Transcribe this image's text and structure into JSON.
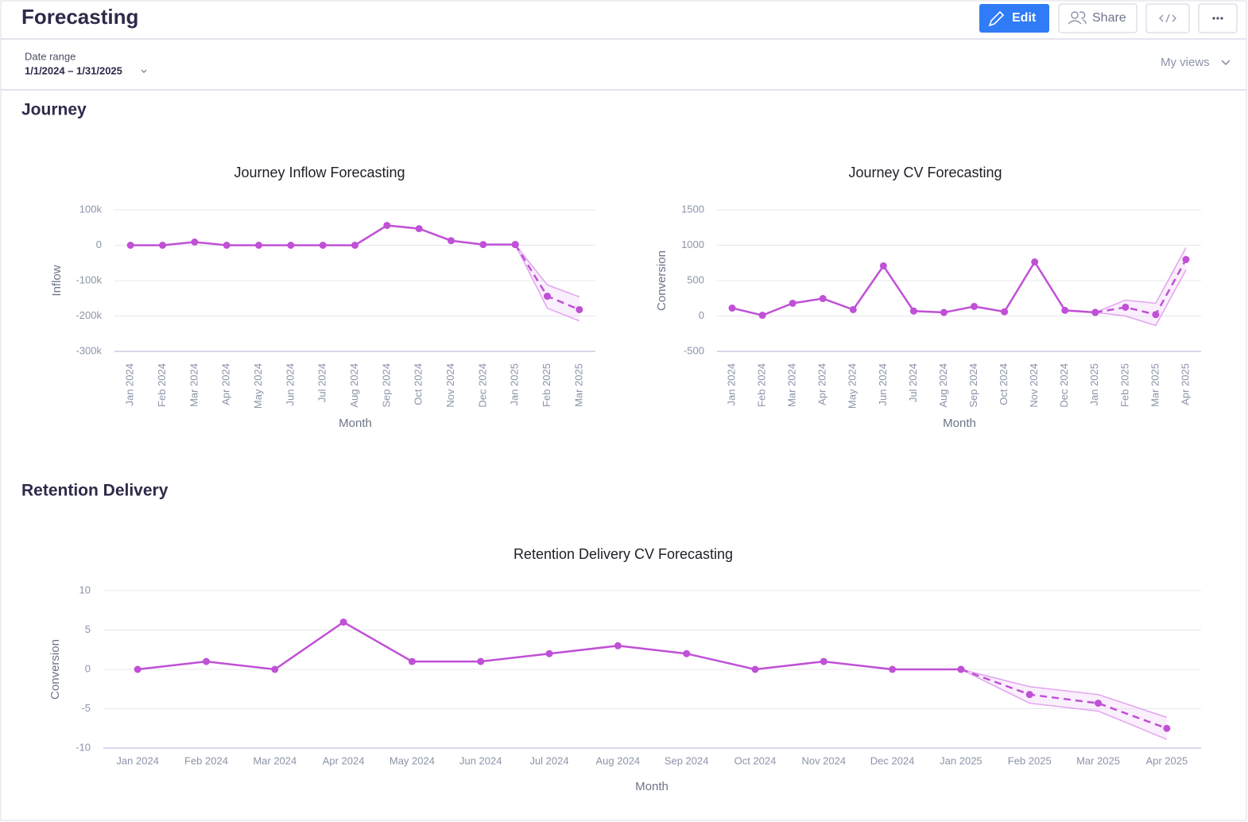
{
  "header": {
    "title": "Forecasting",
    "buttons": [
      "Edit",
      "Share"
    ]
  },
  "filters": {
    "date_range_label": "Date range",
    "date_range": "1/1/2024 – 1/31/2025",
    "views": "My views"
  },
  "sections": [
    "Journey",
    "Retention Delivery"
  ],
  "chart_data": [
    {
      "type": "line",
      "title": "Journey Inflow Forecasting",
      "x_label": "Month",
      "y_label": "Inflow",
      "categories": [
        "Jan 2024",
        "Feb 2024",
        "Mar 2024",
        "Apr 2024",
        "May 2024",
        "Jun 2024",
        "Jul 2024",
        "Aug 2024",
        "Sep 2024",
        "Oct 2024",
        "Nov 2024",
        "Dec 2024",
        "Jan 2025",
        "Feb 2025",
        "Mar 2025"
      ],
      "ylim": [
        -300000,
        100000
      ],
      "yticks": [
        {
          "value": 100000,
          "label": "100k"
        },
        0,
        {
          "value": -100000,
          "label": "-100k"
        },
        {
          "value": -200000,
          "label": "-200k"
        },
        {
          "value": -300000,
          "label": "-300k"
        }
      ],
      "grid": true,
      "series": [
        {
          "color": "#c050d6",
          "values": [
            0,
            0,
            9000,
            0,
            0,
            0,
            0,
            0,
            56000,
            47000,
            13000,
            2000,
            2000,
            null,
            null
          ]
        },
        {
          "color": "#c050d6",
          "dashed": true,
          "values": [
            null,
            null,
            null,
            null,
            null,
            null,
            null,
            null,
            null,
            null,
            null,
            null,
            2000,
            -144000,
            -182000
          ]
        }
      ],
      "band": {
        "color": "#e2a4ee",
        "upper": [
          null,
          null,
          null,
          null,
          null,
          null,
          null,
          null,
          null,
          null,
          null,
          null,
          2000,
          -112000,
          -146000
        ],
        "lower": [
          null,
          null,
          null,
          null,
          null,
          null,
          null,
          null,
          null,
          null,
          null,
          null,
          2000,
          -178000,
          -214000
        ]
      }
    },
    {
      "type": "line",
      "title": "Journey CV Forecasting",
      "x_label": "Month",
      "y_label": "Conversion",
      "categories": [
        "Jan 2024",
        "Feb 2024",
        "Mar 2024",
        "Apr 2024",
        "May 2024",
        "Jun 2024",
        "Jul 2024",
        "Aug 2024",
        "Sep 2024",
        "Oct 2024",
        "Nov 2024",
        "Dec 2024",
        "Jan 2025",
        "Feb 2025",
        "Mar 2025",
        "Apr 2025"
      ],
      "ylim": [
        -500,
        1500
      ],
      "yticks": [
        1500,
        1000,
        500,
        0,
        -500
      ],
      "grid": true,
      "series": [
        {
          "color": "#c050d6",
          "values": [
            112,
            10,
            180,
            247,
            90,
            708,
            70,
            50,
            135,
            60,
            764,
            80,
            50,
            null,
            null,
            null
          ]
        },
        {
          "color": "#c050d6",
          "dashed": true,
          "values": [
            null,
            null,
            null,
            null,
            null,
            null,
            null,
            null,
            null,
            null,
            null,
            null,
            50,
            124,
            20,
            798
          ]
        }
      ],
      "band": {
        "color": "#e2a4ee",
        "upper": [
          null,
          null,
          null,
          null,
          null,
          null,
          null,
          null,
          null,
          null,
          null,
          null,
          50,
          225,
          180,
          966
        ],
        "lower": [
          null,
          null,
          null,
          null,
          null,
          null,
          null,
          null,
          null,
          null,
          null,
          null,
          50,
          0,
          -135,
          652
        ]
      }
    },
    {
      "type": "line",
      "title": "Retention Delivery CV Forecasting",
      "x_label": "Month",
      "y_label": "Conversion",
      "categories": [
        "Jan 2024",
        "Feb 2024",
        "Mar 2024",
        "Apr 2024",
        "May 2024",
        "Jun 2024",
        "Jul 2024",
        "Aug 2024",
        "Sep 2024",
        "Oct 2024",
        "Nov 2024",
        "Dec 2024",
        "Jan 2025",
        "Feb 2025",
        "Mar 2025",
        "Apr 2025"
      ],
      "ylim": [
        -10,
        10
      ],
      "yticks": [
        10,
        5,
        0,
        -5,
        -10
      ],
      "grid": true,
      "series": [
        {
          "color": "#c050d6",
          "values": [
            0,
            1,
            0,
            6,
            1,
            1,
            2,
            3,
            2,
            0,
            1,
            0,
            0,
            null,
            null,
            null
          ]
        },
        {
          "color": "#c050d6",
          "dashed": true,
          "values": [
            null,
            null,
            null,
            null,
            null,
            null,
            null,
            null,
            null,
            null,
            null,
            null,
            0,
            -3.2,
            -4.3,
            -7.5
          ]
        }
      ],
      "band": {
        "color": "#e2a4ee",
        "upper": [
          null,
          null,
          null,
          null,
          null,
          null,
          null,
          null,
          null,
          null,
          null,
          null,
          0,
          -2.2,
          -3.2,
          -6.1
        ],
        "lower": [
          null,
          null,
          null,
          null,
          null,
          null,
          null,
          null,
          null,
          null,
          null,
          null,
          0,
          -4.3,
          -5.3,
          -8.9
        ]
      }
    }
  ]
}
